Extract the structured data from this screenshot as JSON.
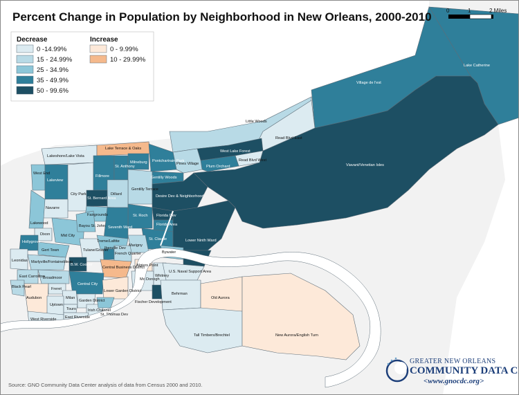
{
  "title": "Percent Change in Population by Neighborhood in New Orleans, 2000-2010",
  "legend": {
    "decrease_heading": "Decrease",
    "increase_heading": "Increase",
    "decrease": [
      {
        "label": "0 -14.99%",
        "color": "#dcebf1"
      },
      {
        "label": "15 - 24.99%",
        "color": "#b8dae6"
      },
      {
        "label": "25 - 34.9%",
        "color": "#8cc6d8"
      },
      {
        "label": "35 - 49.9%",
        "color": "#2f7f9a"
      },
      {
        "label": "50 - 99.6%",
        "color": "#1d4f63"
      }
    ],
    "increase": [
      {
        "label": "0 - 9.99%",
        "color": "#fde9d9"
      },
      {
        "label": "10 - 29.99%",
        "color": "#f5b98c"
      }
    ]
  },
  "scale_bar": {
    "labels": [
      "0",
      "1",
      "2 Miles"
    ]
  },
  "neighborhoods": [
    "Lakeshore/Lake Vista",
    "Lake Terrace & Oaks",
    "West End",
    "Lakeview",
    "City Park",
    "Navarre",
    "Fillmore",
    "St. Anthony",
    "Milneburg",
    "Pontchartrain Park",
    "Pines Village",
    "Gentilly Woods",
    "Gentilly Terrace",
    "Dillard",
    "St. Bernard Area",
    "Fairgrounds",
    "Lakewood",
    "Mid City",
    "Bayou St. John",
    "Seventh Ward",
    "St. Roch",
    "Desire Dev & Neighborhood",
    "Florida Dev",
    "Florida Area",
    "St. Claude",
    "Treme/Lafitte",
    "Hollygrove",
    "Dixon",
    "Gert Town",
    "Tulane/Gravier",
    "Iberville Dev",
    "French Quarter",
    "Marigny",
    "Bywater",
    "Leonidas",
    "Marlyville/Fontainebleau",
    "B.W. Cooper",
    "Central Business District",
    "East Carrollton",
    "Black Pearl",
    "Broadmoor",
    "Freret",
    "Central City",
    "Lower Garden District",
    "Audubon",
    "Uptown",
    "Milan",
    "Touro",
    "Garden District",
    "Irish Channel",
    "East Riverside",
    "West Riverside",
    "St. Thomas Dev",
    "Algiers Point",
    "Mc Donogh",
    "Whitney",
    "Fischer Development",
    "U.S. Naval Support Area",
    "Behrman",
    "Old Aurora",
    "Tall Timbers/Brechtel",
    "New Aurora/English Turn",
    "Lower Ninth Ward",
    "Holy Cross",
    "Little Woods",
    "Read Blvd East",
    "West Lake Forest",
    "Plum Orchard",
    "Read Blvd West",
    "Village de l'est",
    "Lake Catherine",
    "Viavant/Venetian Isles"
  ],
  "source": "Source: GNO Community Data Center analysis of data from Census 2000 and 2010.",
  "logo": {
    "line1": "GREATER NEW ORLEANS",
    "line2": "COMMUNITY DATA CENTER",
    "line3": "<www.gnocdc.org>"
  },
  "colors": {
    "water": "#ffffff",
    "land": "#f2f2f2",
    "lake": "#ffffff",
    "border": "#5d6d78"
  }
}
